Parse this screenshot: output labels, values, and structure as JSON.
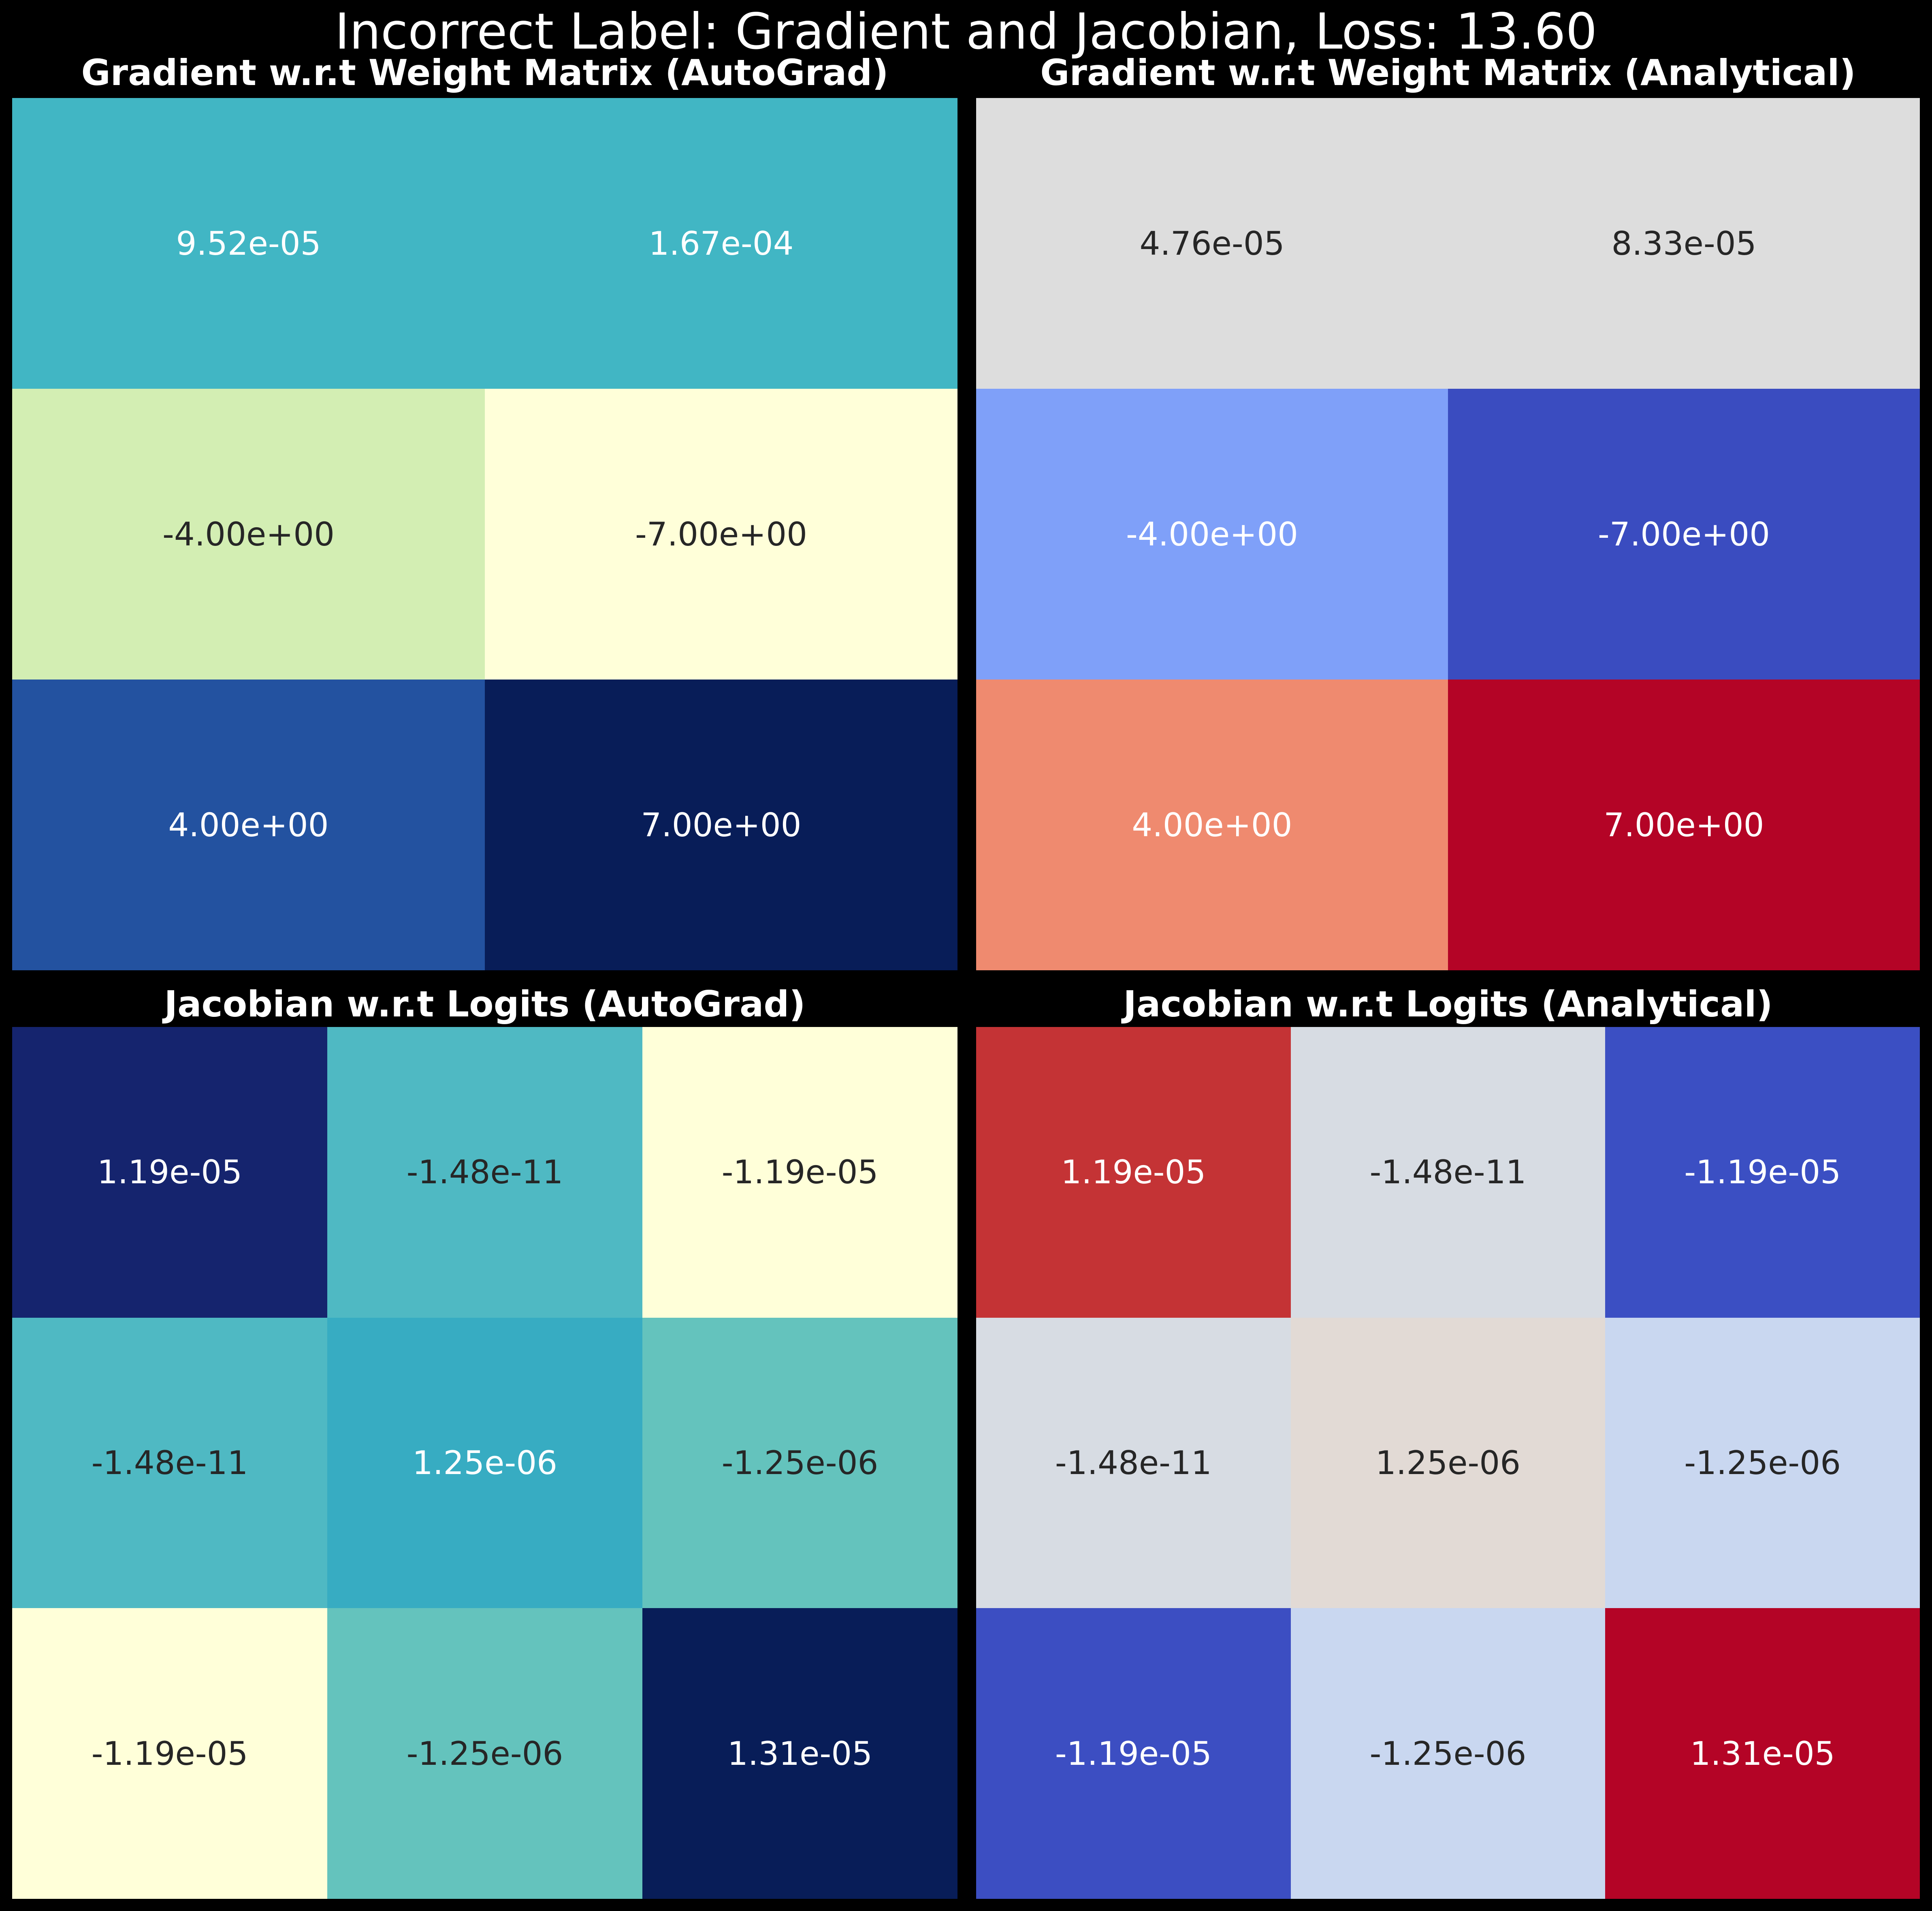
{
  "suptitle": "Incorrect Label: Gradient and Jacobian, Loss: 13.60",
  "chart_data": [
    {
      "type": "heatmap",
      "title": "Gradient w.r.t Weight Matrix (AutoGrad)",
      "colormap": "YlGnBu",
      "rows": 3,
      "cols": 2,
      "values": [
        [
          9.52e-05,
          0.000167
        ],
        [
          -4.0,
          -7.0
        ],
        [
          4.0,
          7.0
        ]
      ],
      "labels": [
        [
          "9.52e-05",
          "1.67e-04"
        ],
        [
          "-4.00e+00",
          "-7.00e+00"
        ],
        [
          "4.00e+00",
          "7.00e+00"
        ]
      ],
      "colors": [
        [
          "#41b6c4",
          "#41b6c4"
        ],
        [
          "#d3eeb3",
          "#ffffd9"
        ],
        [
          "#2352a0",
          "#081d58"
        ]
      ],
      "text_colors": [
        [
          "#ffffff",
          "#ffffff"
        ],
        [
          "#262626",
          "#262626"
        ],
        [
          "#ffffff",
          "#ffffff"
        ]
      ]
    },
    {
      "type": "heatmap",
      "title": "Gradient w.r.t Weight Matrix (Analytical)",
      "colormap": "coolwarm",
      "rows": 3,
      "cols": 2,
      "values": [
        [
          4.76e-05,
          8.33e-05
        ],
        [
          -4.0,
          -7.0
        ],
        [
          4.0,
          7.0
        ]
      ],
      "labels": [
        [
          "4.76e-05",
          "8.33e-05"
        ],
        [
          "-4.00e+00",
          "-7.00e+00"
        ],
        [
          "4.00e+00",
          "7.00e+00"
        ]
      ],
      "colors": [
        [
          "#dddddd",
          "#dddddd"
        ],
        [
          "#7fa0f9",
          "#3a4cc0"
        ],
        [
          "#ef8a6f",
          "#b40426"
        ]
      ],
      "text_colors": [
        [
          "#262626",
          "#262626"
        ],
        [
          "#ffffff",
          "#ffffff"
        ],
        [
          "#ffffff",
          "#ffffff"
        ]
      ]
    },
    {
      "type": "heatmap",
      "title": "Jacobian w.r.t Logits (AutoGrad)",
      "colormap": "YlGnBu",
      "rows": 3,
      "cols": 3,
      "values": [
        [
          1.19e-05,
          -1.48e-11,
          -1.19e-05
        ],
        [
          -1.48e-11,
          1.25e-06,
          -1.25e-06
        ],
        [
          -1.19e-05,
          -1.25e-06,
          1.31e-05
        ]
      ],
      "labels": [
        [
          "1.19e-05",
          "-1.48e-11",
          "-1.19e-05"
        ],
        [
          "-1.48e-11",
          "1.25e-06",
          "-1.25e-06"
        ],
        [
          "-1.19e-05",
          "-1.25e-06",
          "1.31e-05"
        ]
      ],
      "colors": [
        [
          "#15246e",
          "#4fb9c3",
          "#ffffd9"
        ],
        [
          "#4fb9c3",
          "#37acc2",
          "#64c3bd"
        ],
        [
          "#ffffd9",
          "#64c3bd",
          "#081d58"
        ]
      ],
      "text_colors": [
        [
          "#ffffff",
          "#262626",
          "#262626"
        ],
        [
          "#262626",
          "#ffffff",
          "#262626"
        ],
        [
          "#262626",
          "#262626",
          "#ffffff"
        ]
      ]
    },
    {
      "type": "heatmap",
      "title": "Jacobian w.r.t Logits (Analytical)",
      "colormap": "coolwarm",
      "rows": 3,
      "cols": 3,
      "values": [
        [
          1.19e-05,
          -1.48e-11,
          -1.19e-05
        ],
        [
          -1.48e-11,
          1.25e-06,
          -1.25e-06
        ],
        [
          -1.19e-05,
          -1.25e-06,
          1.31e-05
        ]
      ],
      "labels": [
        [
          "1.19e-05",
          "-1.48e-11",
          "-1.19e-05"
        ],
        [
          "-1.48e-11",
          "1.25e-06",
          "-1.25e-06"
        ],
        [
          "-1.19e-05",
          "-1.25e-06",
          "1.31e-05"
        ]
      ],
      "colors": [
        [
          "#c43335",
          "#d7dce3",
          "#3b4fc3"
        ],
        [
          "#d7dce3",
          "#e2dad5",
          "#c9d7f0"
        ],
        [
          "#3c4ec2",
          "#c9d7f0",
          "#b40426"
        ]
      ],
      "text_colors": [
        [
          "#ffffff",
          "#262626",
          "#ffffff"
        ],
        [
          "#262626",
          "#262626",
          "#262626"
        ],
        [
          "#ffffff",
          "#262626",
          "#ffffff"
        ]
      ]
    }
  ]
}
